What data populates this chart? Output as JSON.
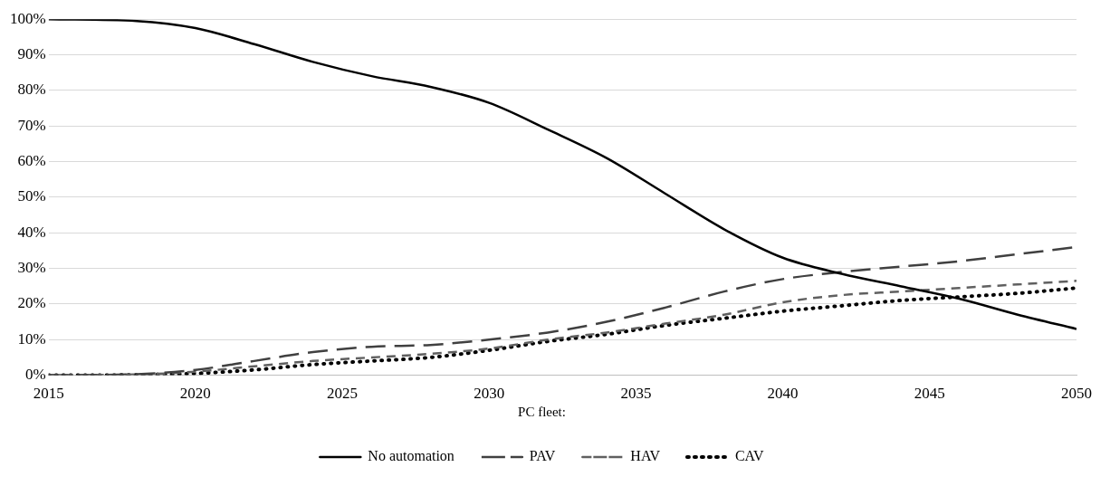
{
  "chart_data": {
    "type": "line",
    "x": [
      2015,
      2018,
      2020,
      2022,
      2024,
      2026,
      2028,
      2030,
      2032,
      2034,
      2036,
      2038,
      2040,
      2042,
      2044,
      2046,
      2048,
      2050
    ],
    "series": [
      {
        "name": "No automation",
        "color": "#000000",
        "line_style": "solid",
        "values": [
          100,
          99.5,
          97.5,
          93,
          88,
          84,
          81,
          76.5,
          69,
          61,
          51,
          41,
          33,
          28.5,
          25,
          21.5,
          17,
          13
        ]
      },
      {
        "name": "PAV",
        "color": "#404040",
        "line_style": "dashed",
        "values": [
          0,
          0.3,
          1.5,
          4,
          6.5,
          8,
          8.5,
          10,
          12,
          15,
          19,
          23.5,
          27,
          29,
          30.5,
          32,
          34,
          36
        ]
      },
      {
        "name": "HAV",
        "color": "#606060",
        "line_style": "dashed",
        "values": [
          0,
          0.2,
          1,
          2.5,
          4,
          5,
          6,
          7.5,
          10,
          12,
          14.5,
          17,
          20.5,
          22.5,
          23.5,
          24.5,
          25.5,
          26.5
        ]
      },
      {
        "name": "CAV",
        "color": "#000000",
        "line_style": "dotted",
        "values": [
          0,
          0.1,
          0.5,
          1.5,
          3,
          4,
          5,
          7,
          9.5,
          11.5,
          14,
          16,
          18,
          19.5,
          21,
          22,
          23,
          24.5
        ]
      }
    ],
    "xlim": [
      2015,
      2050
    ],
    "xticks": [
      2015,
      2020,
      2025,
      2030,
      2035,
      2040,
      2045,
      2050
    ],
    "ylim": [
      0,
      100
    ],
    "yticks": [
      {
        "value": 0,
        "label": "0%"
      },
      {
        "value": 10,
        "label": "10%"
      },
      {
        "value": 20,
        "label": "20%"
      },
      {
        "value": 30,
        "label": "30%"
      },
      {
        "value": 40,
        "label": "40%"
      },
      {
        "value": 50,
        "label": "50%"
      },
      {
        "value": 60,
        "label": "60%"
      },
      {
        "value": 70,
        "label": "70%"
      },
      {
        "value": 80,
        "label": "80%"
      },
      {
        "value": 90,
        "label": "90%"
      },
      {
        "value": 100,
        "label": "100%"
      }
    ],
    "grid": "y",
    "legend": "bottom",
    "legend_title": "PC fleet:",
    "marker": "none"
  }
}
